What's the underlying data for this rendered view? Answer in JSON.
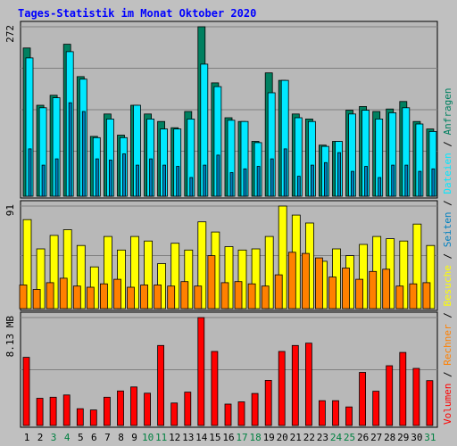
{
  "chart_data": {
    "type": "bar",
    "title": "Tages-Statistik im Monat Oktober 2020",
    "colors": {
      "title": "#0000ff",
      "background": "#c0c0c0",
      "panel": "#b8b8b8",
      "grid": "#808080",
      "weekday": "#000000",
      "weekend": "#008040",
      "anfragen": "#008060",
      "dateien": "#00e8ff",
      "seiten": "#0080c0",
      "besuche": "#ffff00",
      "rechner": "#ff8000",
      "volumen": "#ff0000"
    },
    "categories": [
      "1",
      "2",
      "3",
      "4",
      "5",
      "6",
      "7",
      "8",
      "9",
      "10",
      "11",
      "12",
      "13",
      "14",
      "15",
      "16",
      "17",
      "18",
      "19",
      "20",
      "21",
      "22",
      "23",
      "24",
      "25",
      "26",
      "27",
      "28",
      "29",
      "30",
      "31"
    ],
    "weekend_days": [
      "3",
      "4",
      "10",
      "11",
      "17",
      "18",
      "24",
      "25",
      "31"
    ],
    "panels": [
      {
        "scale_label": "272",
        "ymax": 272,
        "series": [
          {
            "name": "Anfragen",
            "values": [
              238,
              146,
              162,
              244,
              192,
              96,
              132,
              98,
              146,
              132,
              120,
              110,
              136,
              272,
              182,
              126,
              120,
              88,
              198,
              186,
              132,
              124,
              82,
              88,
              138,
              144,
              136,
              140,
              152,
              120,
              108
            ]
          },
          {
            "name": "Dateien",
            "values": [
              222,
              142,
              158,
              232,
              188,
              94,
              124,
              94,
              146,
              124,
              108,
              108,
              124,
              212,
              176,
              122,
              120,
              86,
              166,
              186,
              126,
              120,
              80,
              88,
              132,
              138,
              124,
              134,
              142,
              116,
              104
            ]
          },
          {
            "name": "Seiten",
            "values": [
              76,
              50,
              60,
              150,
              136,
              60,
              58,
              68,
              50,
              60,
              50,
              48,
              30,
              50,
              66,
              38,
              44,
              48,
              60,
              76,
              32,
              50,
              54,
              70,
              40,
              48,
              30,
              50,
              50,
              40,
              44
            ]
          }
        ]
      },
      {
        "scale_label": "91",
        "ymax": 91,
        "series": [
          {
            "name": "Besuche",
            "values": [
              79,
              53,
              65,
              70,
              56,
              37,
              64,
              52,
              64,
              60,
              40,
              58,
              52,
              77,
              68,
              55,
              52,
              53,
              64,
              91,
              83,
              76,
              42,
              53,
              47,
              57,
              64,
              62,
              60,
              75,
              56
            ]
          },
          {
            "name": "Rechner",
            "values": [
              21,
              17,
              23,
              27,
              20,
              19,
              22,
              26,
              19,
              21,
              21,
              20,
              24,
              20,
              47,
              23,
              24,
              22,
              20,
              30,
              50,
              49,
              45,
              28,
              36,
              26,
              33,
              35,
              20,
              22,
              23
            ]
          }
        ]
      },
      {
        "scale_label": "8.13 MB",
        "ymax": 8.13,
        "series": [
          {
            "name": "Volumen",
            "values": [
              5.13,
              2.05,
              2.13,
              2.3,
              1.26,
              1.17,
              2.13,
              2.6,
              2.9,
              2.43,
              6.03,
              1.69,
              2.51,
              8.13,
              5.58,
              1.61,
              1.78,
              2.41,
              3.4,
              5.58,
              6.03,
              6.2,
              1.87,
              1.87,
              1.4,
              4.0,
              2.58,
              4.5,
              5.5,
              4.3,
              3.38
            ]
          }
        ]
      }
    ],
    "right_labels": [
      {
        "text": "Volumen",
        "color": "#ff0000"
      },
      {
        "text": " / ",
        "color": "#000000"
      },
      {
        "text": "Rechner",
        "color": "#ff8000"
      },
      {
        "text": " / ",
        "color": "#000000"
      },
      {
        "text": "Besuche",
        "color": "#ffff00"
      },
      {
        "text": " / ",
        "color": "#000000"
      },
      {
        "text": "Seiten",
        "color": "#0080c0"
      },
      {
        "text": " / ",
        "color": "#000000"
      },
      {
        "text": "Dateien",
        "color": "#00e8ff"
      },
      {
        "text": " / ",
        "color": "#000000"
      },
      {
        "text": "Anfragen",
        "color": "#008060"
      }
    ]
  }
}
